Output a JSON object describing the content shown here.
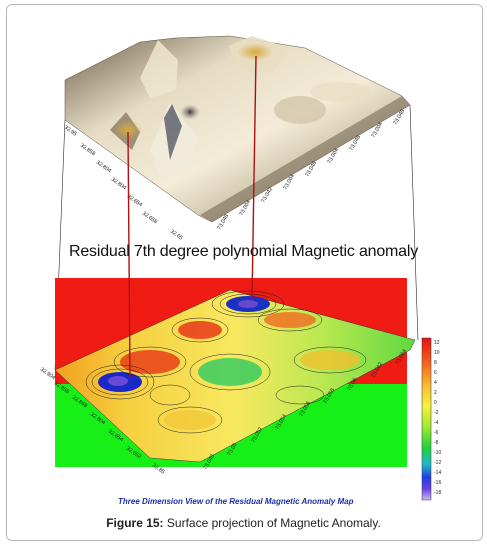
{
  "upper_surface": {
    "axis_left_labels": [
      "32.95",
      "32.858",
      "32.804",
      "32.804",
      "32.654",
      "32.658",
      "32.65"
    ],
    "axis_bottom_labels": [
      "73.048",
      "73.004",
      "73.042",
      "73.004",
      "73.048",
      "73.004",
      "73.048",
      "73.004",
      "73.048"
    ]
  },
  "title": "Residual 7th degree polynomial Magnetic anomaly",
  "lower_map": {
    "axis_left_labels": [
      "32.904",
      "32.858",
      "32.848",
      "32.804",
      "32.654",
      "32.652",
      "32.85"
    ],
    "axis_bottom_labels": [
      "73.048",
      "73.05",
      "73.052",
      "73.054",
      "73.056",
      "73.058",
      "73.06",
      "73.062",
      "73.064"
    ],
    "map_caption": "Three Dimension View of the Residual Magnetic Anomaly Map"
  },
  "colorbar": {
    "ticks": [
      "12",
      "10",
      "8",
      "6",
      "4",
      "2",
      "0",
      "-2",
      "-4",
      "-6",
      "-8",
      "-10",
      "-12",
      "-14",
      "-16",
      "-18"
    ]
  },
  "figure_caption": {
    "label": "Figure 15:",
    "text": " Surface projection of Magnetic Anomaly."
  },
  "colors": {
    "background_red": "#f01c14",
    "background_green": "#16f016",
    "leader_line": "#b01010"
  }
}
